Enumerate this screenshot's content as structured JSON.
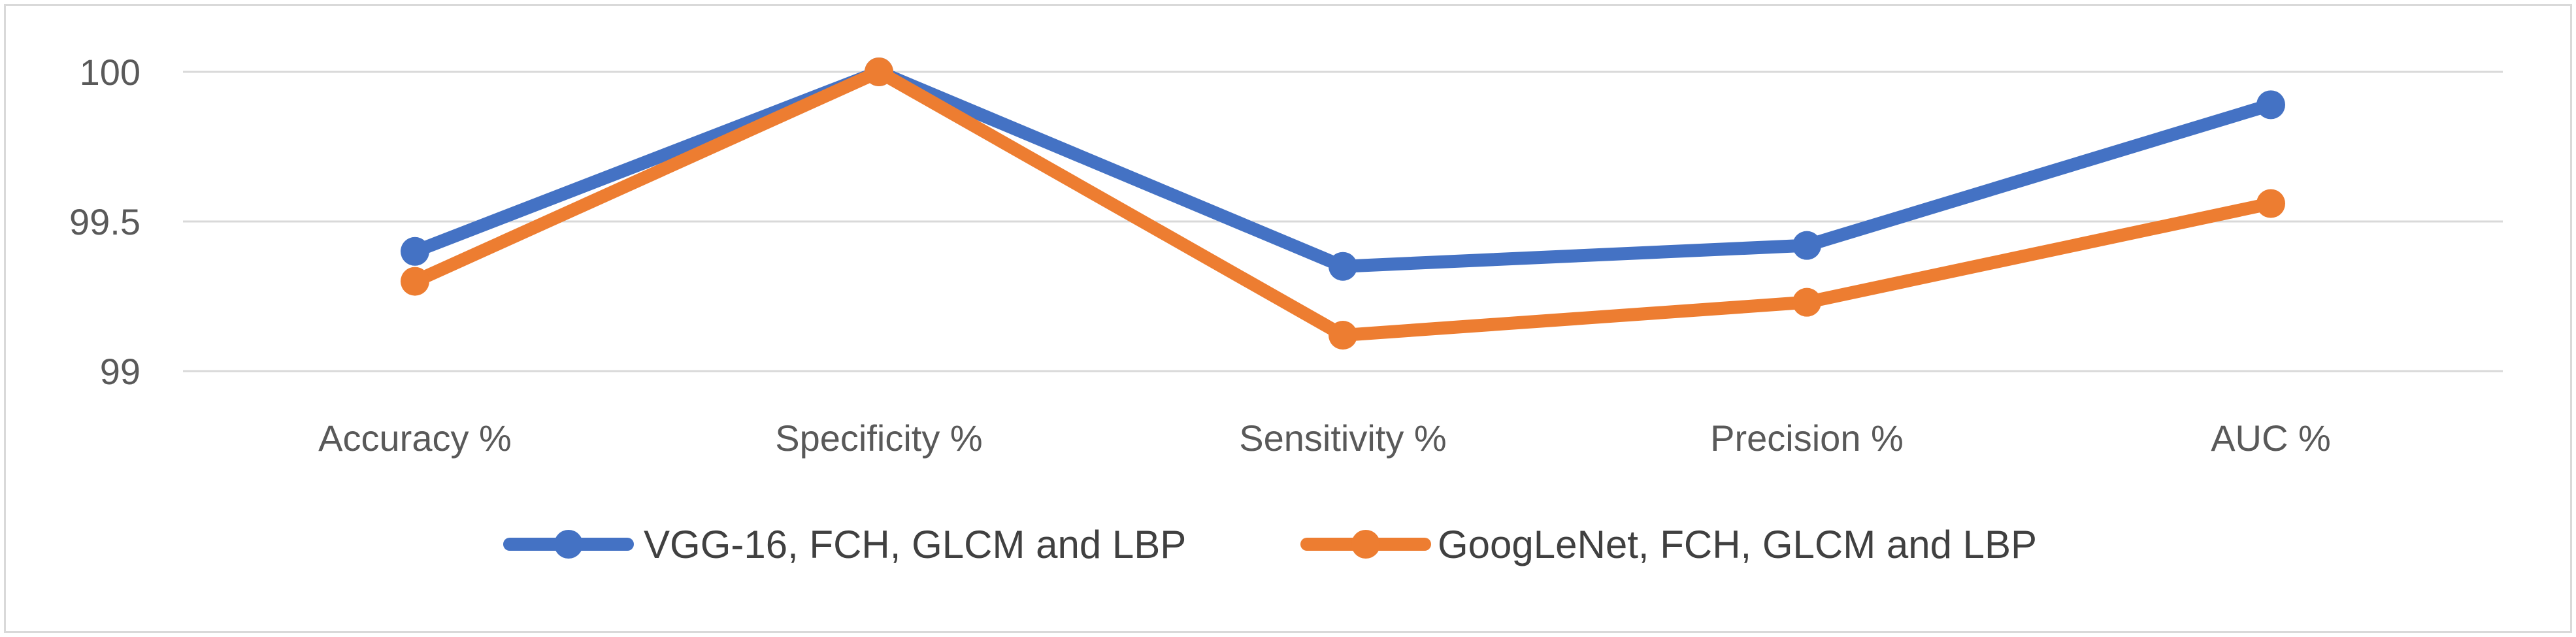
{
  "chart_data": {
    "type": "line",
    "categories": [
      "Accuracy %",
      "Specificity %",
      "Sensitivity %",
      "Precision %",
      "AUC %"
    ],
    "series": [
      {
        "name": "VGG-16, FCH, GLCM and LBP",
        "values": [
          99.4,
          100.0,
          99.35,
          99.42,
          99.89
        ],
        "color": "#4472c4"
      },
      {
        "name": "GoogLeNet, FCH, GLCM and LBP",
        "values": [
          99.3,
          100.0,
          99.12,
          99.23,
          99.56
        ],
        "color": "#ed7d31"
      }
    ],
    "ylim": [
      99,
      100
    ],
    "yticks": [
      99,
      99.5,
      100
    ],
    "ytick_labels": [
      "99",
      "99.5",
      "100"
    ],
    "grid": true,
    "legend": "bottom",
    "title": "",
    "xlabel": "",
    "ylabel": ""
  },
  "colors": {
    "grid": "#d9d9d9",
    "text": "#595959",
    "border": "#d9d9d9"
  }
}
